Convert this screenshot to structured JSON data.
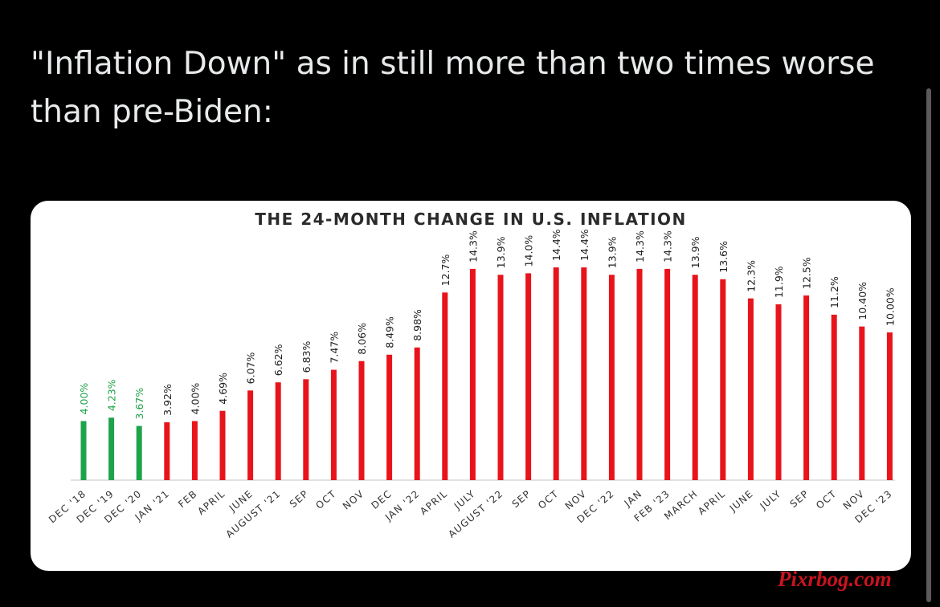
{
  "post": {
    "text": "\"Inflation Down\" as in still more than two times worse than pre-Biden:"
  },
  "watermark": "Pixrbog.com",
  "colors": {
    "pre_biden": "#1fa34a",
    "biden": "#e8141b",
    "background": "#000000",
    "card": "#ffffff"
  },
  "chart_data": {
    "type": "bar",
    "title": "THE 24-MONTH CHANGE IN U.S. INFLATION",
    "xlabel": "",
    "ylabel": "",
    "ylim": [
      0,
      16
    ],
    "grid": false,
    "legend": "none",
    "categories": [
      "DEC '18",
      "DEC '19",
      "DEC '20",
      "JAN '21",
      "FEB",
      "APRIL",
      "JUNE",
      "AUGUST '21",
      "SEP",
      "OCT",
      "NOV",
      "DEC",
      "JAN '22",
      "APRIL",
      "JULY",
      "AUGUST '22",
      "SEP",
      "OCT",
      "NOV",
      "DEC '22",
      "JAN",
      "FEB '23",
      "MARCH",
      "APRIL",
      "JUNE",
      "JULY",
      "SEP",
      "OCT",
      "NOV",
      "DEC '23"
    ],
    "values": [
      4.0,
      4.23,
      3.67,
      3.92,
      4.0,
      4.69,
      6.07,
      6.62,
      6.83,
      7.47,
      8.06,
      8.49,
      8.98,
      12.7,
      14.3,
      13.9,
      14.0,
      14.4,
      14.4,
      13.9,
      14.3,
      14.3,
      13.9,
      13.6,
      12.3,
      11.9,
      12.5,
      11.2,
      10.4,
      10.0
    ],
    "data_labels": [
      "4.00%",
      "4.23%",
      "3.67%",
      "3.92%",
      "4.00%",
      "4.69%",
      "6.07%",
      "6.62%",
      "6.83%",
      "7.47%",
      "8.06%",
      "8.49%",
      "8.98%",
      "12.7%",
      "14.3%",
      "13.9%",
      "14.0%",
      "14.4%",
      "14.4%",
      "13.9%",
      "14.3%",
      "14.3%",
      "13.9%",
      "13.6%",
      "12.3%",
      "11.9%",
      "12.5%",
      "11.2%",
      "10.40%",
      "10.00%"
    ],
    "bar_colors": [
      "green",
      "green",
      "green",
      "red",
      "red",
      "red",
      "red",
      "red",
      "red",
      "red",
      "red",
      "red",
      "red",
      "red",
      "red",
      "red",
      "red",
      "red",
      "red",
      "red",
      "red",
      "red",
      "red",
      "red",
      "red",
      "red",
      "red",
      "red",
      "red",
      "red"
    ]
  }
}
